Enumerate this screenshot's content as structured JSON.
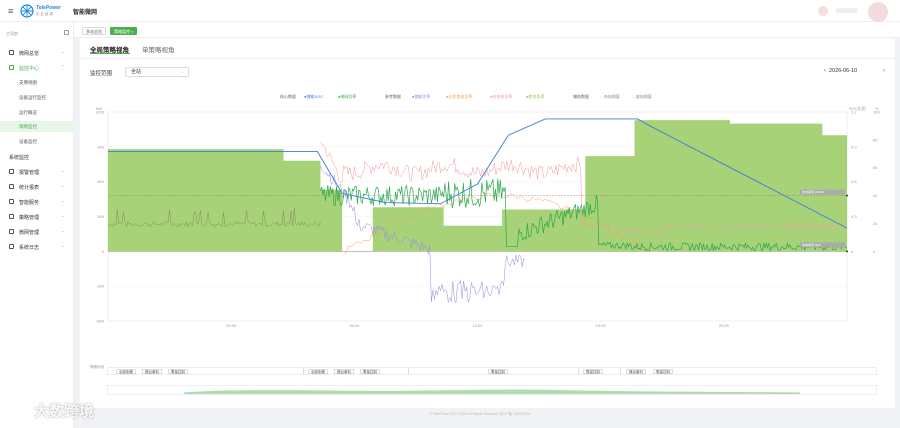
{
  "header": {
    "app_title": "智能微网",
    "brand_en": "TelePower",
    "brand_cn": "天 此 能 源"
  },
  "sidebar": {
    "menu_head": "主导航",
    "items": [
      {
        "label": "微网总览",
        "arrow": "⌄",
        "icon": "grid-icon"
      },
      {
        "label": "监控中心",
        "arrow": "⌃",
        "icon": "monitor-icon"
      },
      {
        "label": "系统监控",
        "arrow": "",
        "icon": "plus-icon"
      },
      {
        "label": "报警管理",
        "arrow": "⌄",
        "icon": "alarm-icon"
      },
      {
        "label": "统计报表",
        "arrow": "⌄",
        "icon": "chart-icon"
      },
      {
        "label": "智能服务",
        "arrow": "⌄",
        "icon": "service-icon"
      },
      {
        "label": "策略管理",
        "arrow": "⌄",
        "icon": "strategy-icon"
      },
      {
        "label": "微网管理",
        "arrow": "⌄",
        "icon": "settings-icon"
      },
      {
        "label": "系统日志",
        "arrow": "⌄",
        "icon": "log-icon"
      }
    ],
    "sub_items": [
      "支撑视图",
      "设备运行监控",
      "运行概览",
      "策略监控",
      "设备监控"
    ]
  },
  "tabs": {
    "tag_home": "多站总览",
    "tag_active": "策略监控",
    "tag_close": "×"
  },
  "view_tabs": {
    "global": "全局策略视角",
    "single": "单策略视角"
  },
  "filter": {
    "label": "监控范围",
    "select_value": "全站",
    "caret": "⌄",
    "prev": "‹",
    "date": "2026-06-10",
    "next": "›"
  },
  "legend": {
    "group1_label": "核心数据",
    "items1": [
      "储能SOC",
      "电网功率"
    ],
    "group2_label": "参考数据",
    "items2": [
      "储能功率",
      "光伏发电功率",
      "充电桩功率",
      "综合负荷"
    ],
    "group3_label": "辅助数据",
    "items3": [
      "充电阈值",
      "放电阈值"
    ]
  },
  "chart_data": {
    "type": "line",
    "title": "",
    "ylabel_left": "kW",
    "ylabel_right_1": "SOC比例",
    "ylabel_right_2": "%",
    "ylim_left": [
      -600,
      1200
    ],
    "left_ticks": [
      "1200",
      "900",
      "600",
      "300",
      "0",
      "-300",
      "-600"
    ],
    "right1_ticks": [
      "1.2",
      "0.9",
      "0.6",
      "0.3",
      "0"
    ],
    "right2_ticks": [
      "100",
      "80",
      "60",
      "40",
      "20",
      "0"
    ],
    "x_ticks": [
      "04:00",
      "08:00",
      "12:00",
      "16:00",
      "20:00"
    ],
    "series": [
      {
        "name": "储能SOC",
        "color": "#3b7ddd"
      },
      {
        "name": "电网功率",
        "color": "#2aa84a"
      },
      {
        "name": "储能功率",
        "color": "#9b86e8"
      },
      {
        "name": "光伏发电功率",
        "color": "#f5a04a"
      },
      {
        "name": "充电桩功率",
        "color": "#f29aa0"
      },
      {
        "name": "综合负荷",
        "color": "#8bc34a"
      }
    ],
    "threshold_labels": {
      "upper": "放电阈值 450kW",
      "lower": "充电阈值 0kW"
    },
    "colors": {
      "fill": "#8bc34a",
      "soc": "#3b7ddd",
      "grid": "#2aa84a",
      "storage": "#9b86e8",
      "pv": "#f5a04a",
      "charger": "#f29aa0",
      "load": "#8a8a60"
    }
  },
  "timeline": {
    "label": "策略时段",
    "chips": [
      "全能削峰",
      "峰谷套利",
      "需量控制",
      "全能削峰",
      "峰谷套利",
      "需量控制",
      "需量控制",
      "需量控制",
      "峰谷套利",
      "需量控制"
    ]
  },
  "footer": "© TelePower 2017-2026 All Rights Reserved 京ICP备 100000000",
  "watermark": "大数跨境"
}
